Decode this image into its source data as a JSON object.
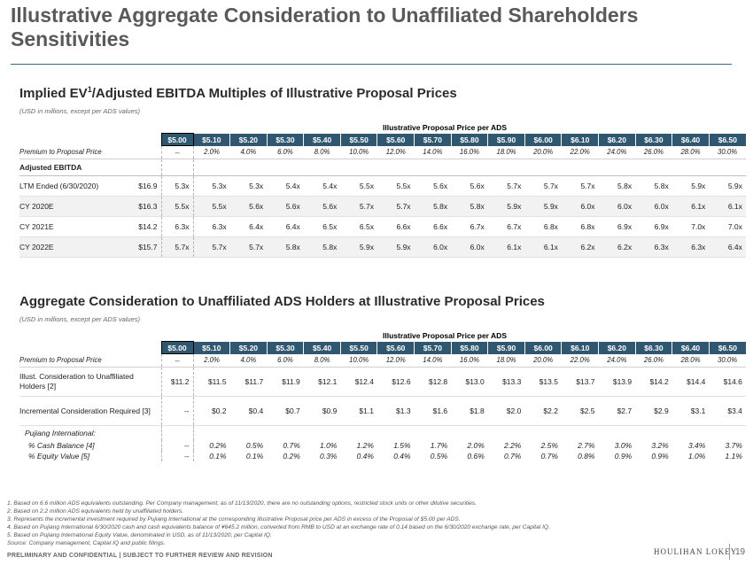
{
  "title": "Illustrative Aggregate Consideration to Unaffiliated Shareholders Sensitivities",
  "section1": {
    "title_pre": "Implied EV",
    "title_sup": "1",
    "title_post": "/Adjusted EBITDA Multiples of Illustrative Proposal Prices",
    "note": "(USD in millions, except per ADS values)",
    "header_label": "Illustrative Proposal Price per ADS",
    "prices": [
      "$5.00",
      "$5.10",
      "$5.20",
      "$5.30",
      "$5.40",
      "$5.50",
      "$5.60",
      "$5.70",
      "$5.80",
      "$5.90",
      "$6.00",
      "$6.10",
      "$6.20",
      "$6.30",
      "$6.40",
      "$6.50"
    ],
    "premium_label": "Premium to Proposal Price",
    "premiums": [
      "--",
      "2.0%",
      "4.0%",
      "6.0%",
      "8.0%",
      "10.0%",
      "12.0%",
      "14.0%",
      "16.0%",
      "18.0%",
      "20.0%",
      "22.0%",
      "24.0%",
      "26.0%",
      "28.0%",
      "30.0%"
    ],
    "subheader": "Adjusted EBITDA",
    "rows": [
      {
        "label": "LTM Ended (6/30/2020)",
        "base": "$16.9",
        "values": [
          "5.3x",
          "5.3x",
          "5.3x",
          "5.4x",
          "5.4x",
          "5.5x",
          "5.5x",
          "5.6x",
          "5.6x",
          "5.7x",
          "5.7x",
          "5.7x",
          "5.8x",
          "5.8x",
          "5.9x",
          "5.9x"
        ]
      },
      {
        "label": "CY 2020E",
        "base": "$16.3",
        "values": [
          "5.5x",
          "5.5x",
          "5.6x",
          "5.6x",
          "5.6x",
          "5.7x",
          "5.7x",
          "5.8x",
          "5.8x",
          "5.9x",
          "5.9x",
          "6.0x",
          "6.0x",
          "6.0x",
          "6.1x",
          "6.1x"
        ]
      },
      {
        "label": "CY 2021E",
        "base": "$14.2",
        "values": [
          "6.3x",
          "6.3x",
          "6.4x",
          "6.4x",
          "6.5x",
          "6.5x",
          "6.6x",
          "6.6x",
          "6.7x",
          "6.7x",
          "6.8x",
          "6.8x",
          "6.9x",
          "6.9x",
          "7.0x",
          "7.0x"
        ]
      },
      {
        "label": "CY 2022E",
        "base": "$15.7",
        "values": [
          "5.7x",
          "5.7x",
          "5.7x",
          "5.8x",
          "5.8x",
          "5.9x",
          "5.9x",
          "6.0x",
          "6.0x",
          "6.1x",
          "6.1x",
          "6.2x",
          "6.2x",
          "6.3x",
          "6.3x",
          "6.4x"
        ]
      }
    ]
  },
  "section2": {
    "title": "Aggregate Consideration to Unaffiliated ADS Holders at Illustrative Proposal Prices",
    "note": "(USD in millions, except per ADS values)",
    "header_label": "Illustrative Proposal Price per ADS",
    "prices": [
      "$5.00",
      "$5.10",
      "$5.20",
      "$5.30",
      "$5.40",
      "$5.50",
      "$5.60",
      "$5.70",
      "$5.80",
      "$5.90",
      "$6.00",
      "$6.10",
      "$6.20",
      "$6.30",
      "$6.40",
      "$6.50"
    ],
    "premium_label": "Premium to Proposal Price",
    "premiums": [
      "--",
      "2.0%",
      "4.0%",
      "6.0%",
      "8.0%",
      "10.0%",
      "12.0%",
      "14.0%",
      "16.0%",
      "18.0%",
      "20.0%",
      "22.0%",
      "24.0%",
      "26.0%",
      "28.0%",
      "30.0%"
    ],
    "rows": [
      {
        "label": "Illust. Consideration to Unaffiliated Holders [2]",
        "values": [
          "$11.2",
          "$11.5",
          "$11.7",
          "$11.9",
          "$12.1",
          "$12.4",
          "$12.6",
          "$12.8",
          "$13.0",
          "$13.3",
          "$13.5",
          "$13.7",
          "$13.9",
          "$14.2",
          "$14.4",
          "$14.6"
        ]
      },
      {
        "label": "Incremental Consideration Required [3]",
        "values": [
          "--",
          "$0.2",
          "$0.4",
          "$0.7",
          "$0.9",
          "$1.1",
          "$1.3",
          "$1.6",
          "$1.8",
          "$2.0",
          "$2.2",
          "$2.5",
          "$2.7",
          "$2.9",
          "$3.1",
          "$3.4"
        ]
      }
    ],
    "pujiang_label": "Pujiang International:",
    "italic_rows": [
      {
        "label": "% Cash Balance [4]",
        "values": [
          "--",
          "0.2%",
          "0.5%",
          "0.7%",
          "1.0%",
          "1.2%",
          "1.5%",
          "1.7%",
          "2.0%",
          "2.2%",
          "2.5%",
          "2.7%",
          "3.0%",
          "3.2%",
          "3.4%",
          "3.7%"
        ]
      },
      {
        "label": "% Equity Value [5]",
        "values": [
          "--",
          "0.1%",
          "0.1%",
          "0.2%",
          "0.3%",
          "0.4%",
          "0.4%",
          "0.5%",
          "0.6%",
          "0.7%",
          "0.7%",
          "0.8%",
          "0.9%",
          "0.9%",
          "1.0%",
          "1.1%"
        ]
      }
    ]
  },
  "footnotes": [
    "1.  Based on 6.6 million ADS equivalents outstanding. Per Company management, as of 11/13/2020, there are no outstanding options, restricted stock units or other dilutive securities.",
    "2.  Based on 2.2 million ADS equivalents held by unaffiliated holders.",
    "3.  Represents the incremental investment required by Pujiang International at the corresponding illustrative Proposal price per ADS in excess of the Proposal of $5.00 per ADS.",
    "4.  Based on Pujiang International 6/30/2020 cash and cash equivalents balance of ¥645.2 million, converted from RMB to USD at an exchange rate of 0.14 based on the 6/30/2020 exchange rate, per Capital IQ.",
    "5.  Based on Pujiang International Equity Value, denominated in USD, as of 11/13/2020, per Capital IQ.",
    "Source: Company management, Capital IQ and public filings."
  ],
  "confidential": "PRELIMINARY AND CONFIDENTIAL | SUBJECT TO FURTHER REVIEW AND REVISION",
  "logo": "HOULIHAN LOKEY",
  "page_number": "19"
}
